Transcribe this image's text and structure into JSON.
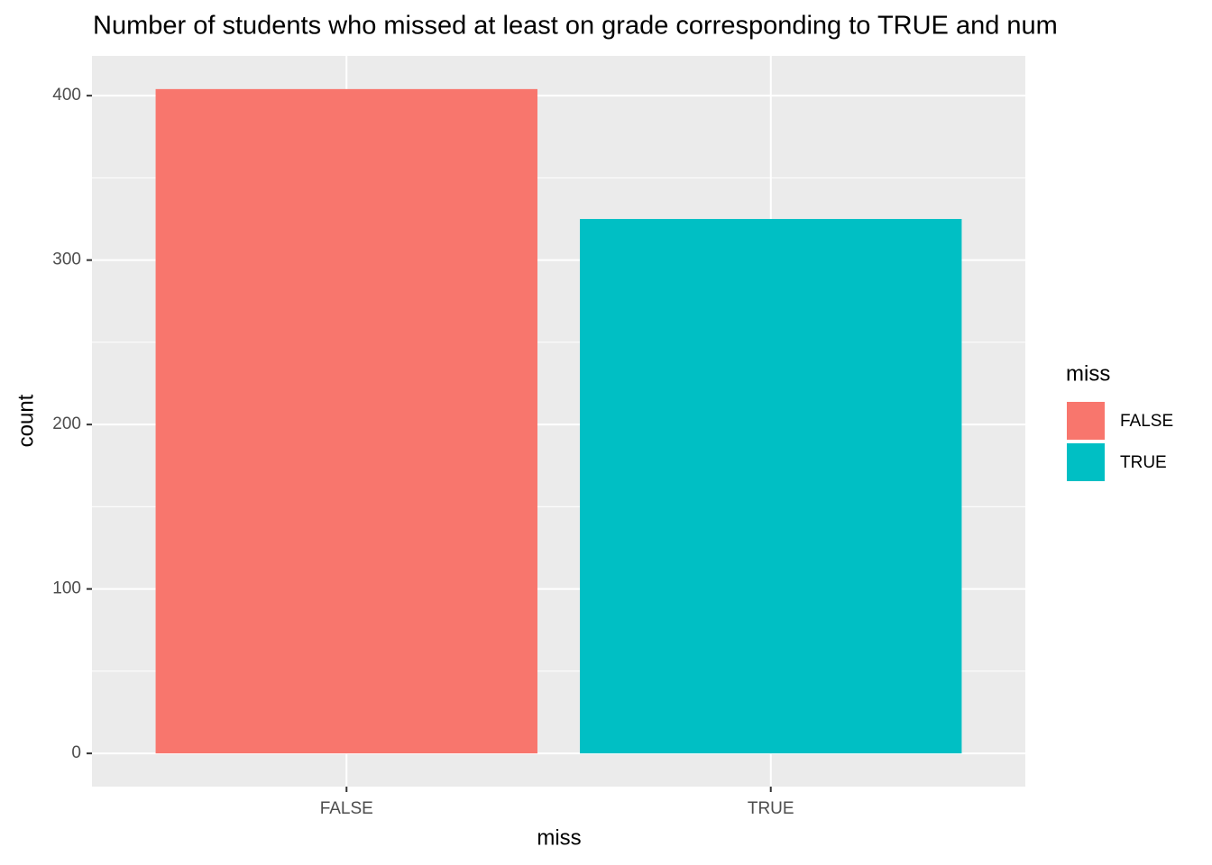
{
  "chart_data": {
    "type": "bar",
    "title": "Number of students who missed at least on grade corresponding to TRUE and num",
    "x_label": "miss",
    "y_label": "count",
    "categories": [
      "FALSE",
      "TRUE"
    ],
    "values": [
      404,
      325
    ],
    "colors": [
      "#F8766D",
      "#00BFC4"
    ],
    "ylim": [
      -20.2,
      424.2
    ],
    "yticks": [
      0,
      100,
      200,
      300,
      400
    ],
    "minor_yticks": [
      50,
      150,
      250,
      350
    ],
    "grid": true,
    "legend_title": "miss",
    "legend_position": "right"
  }
}
